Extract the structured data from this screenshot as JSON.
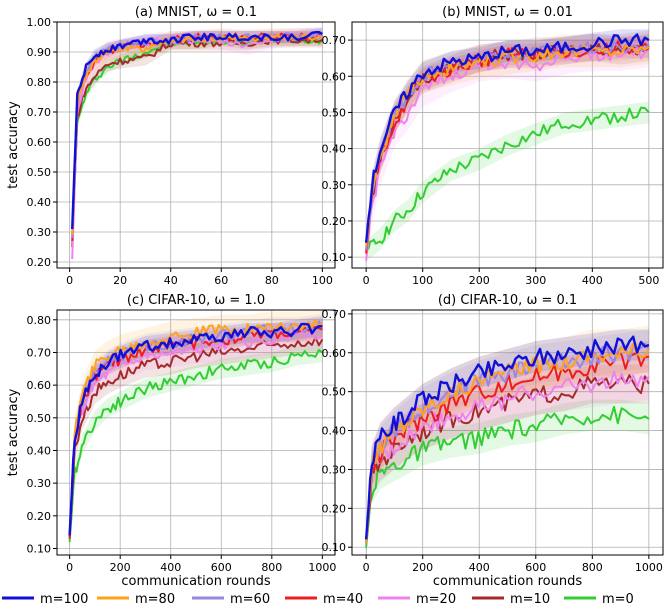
{
  "colors": {
    "m=100": "#1010d8",
    "m=80": "#ffa21a",
    "m=60": "#9b87e0",
    "m=40": "#ee1c1c",
    "m=20": "#ee82ee",
    "m=10": "#a52a2a",
    "m=0": "#32cd32"
  },
  "legend": {
    "entries": [
      "m=100",
      "m=80",
      "m=60",
      "m=40",
      "m=20",
      "m=10",
      "m=0"
    ]
  },
  "chart_data": [
    {
      "id": "a",
      "type": "line",
      "title": "(a) MNIST, ω = 0.1",
      "xlabel": "",
      "ylabel": "test accuracy",
      "xlim": [
        -5,
        105
      ],
      "ylim": [
        0.18,
        1.0
      ],
      "xticks": [
        0,
        20,
        40,
        60,
        80,
        100
      ],
      "yticks": [
        0.2,
        0.3,
        0.4,
        0.5,
        0.6,
        0.7,
        0.8,
        0.9,
        1.0
      ],
      "ytick_labels": [
        "0.20",
        "0.30",
        "0.40",
        "0.50",
        "0.60",
        "0.70",
        "0.80",
        "0.90",
        "1.00"
      ],
      "grid": true,
      "band": 0.02,
      "series": [
        {
          "name": "m=0",
          "x": [
            1,
            3,
            6,
            10,
            15,
            20,
            30,
            40,
            50,
            60,
            70,
            80,
            90,
            100
          ],
          "y": [
            0.29,
            0.66,
            0.75,
            0.81,
            0.85,
            0.87,
            0.9,
            0.93,
            0.93,
            0.94,
            0.93,
            0.94,
            0.94,
            0.94
          ]
        },
        {
          "name": "m=10",
          "x": [
            1,
            3,
            6,
            10,
            15,
            20,
            30,
            40,
            50,
            60,
            70,
            80,
            90,
            100
          ],
          "y": [
            0.25,
            0.68,
            0.77,
            0.82,
            0.86,
            0.87,
            0.88,
            0.93,
            0.93,
            0.93,
            0.93,
            0.94,
            0.94,
            0.94
          ]
        },
        {
          "name": "m=20",
          "x": [
            1,
            3,
            6,
            10,
            15,
            20,
            30,
            40,
            50,
            60,
            70,
            80,
            90,
            100
          ],
          "y": [
            0.21,
            0.7,
            0.8,
            0.86,
            0.9,
            0.91,
            0.93,
            0.94,
            0.94,
            0.94,
            0.92,
            0.94,
            0.95,
            0.95
          ]
        },
        {
          "name": "m=40",
          "x": [
            1,
            3,
            6,
            10,
            15,
            20,
            30,
            40,
            50,
            60,
            70,
            80,
            90,
            100
          ],
          "y": [
            0.27,
            0.72,
            0.82,
            0.87,
            0.9,
            0.92,
            0.93,
            0.94,
            0.95,
            0.95,
            0.95,
            0.95,
            0.95,
            0.95
          ]
        },
        {
          "name": "m=60",
          "x": [
            1,
            3,
            6,
            10,
            15,
            20,
            30,
            40,
            50,
            60,
            70,
            80,
            90,
            100
          ],
          "y": [
            0.28,
            0.73,
            0.83,
            0.88,
            0.91,
            0.92,
            0.93,
            0.94,
            0.95,
            0.95,
            0.95,
            0.95,
            0.95,
            0.96
          ]
        },
        {
          "name": "m=80",
          "x": [
            1,
            3,
            6,
            10,
            15,
            20,
            30,
            40,
            50,
            60,
            70,
            80,
            90,
            100
          ],
          "y": [
            0.29,
            0.73,
            0.82,
            0.87,
            0.9,
            0.91,
            0.91,
            0.94,
            0.94,
            0.95,
            0.94,
            0.95,
            0.95,
            0.95
          ]
        },
        {
          "name": "m=100",
          "x": [
            1,
            3,
            6,
            10,
            15,
            20,
            30,
            40,
            50,
            60,
            70,
            80,
            90,
            100
          ],
          "y": [
            0.31,
            0.75,
            0.84,
            0.89,
            0.91,
            0.92,
            0.94,
            0.94,
            0.95,
            0.95,
            0.95,
            0.95,
            0.95,
            0.96
          ]
        }
      ]
    },
    {
      "id": "b",
      "type": "line",
      "title": "(b) MNIST, ω = 0.01",
      "xlabel": "",
      "ylabel": "",
      "xlim": [
        -25,
        525
      ],
      "ylim": [
        0.07,
        0.75
      ],
      "xticks": [
        0,
        100,
        200,
        300,
        400,
        500
      ],
      "yticks": [
        0.1,
        0.2,
        0.3,
        0.4,
        0.5,
        0.6,
        0.7
      ],
      "ytick_labels": [
        "0.10",
        "0.20",
        "0.30",
        "0.40",
        "0.50",
        "0.60",
        "0.70"
      ],
      "grid": true,
      "band": 0.03,
      "series": [
        {
          "name": "m=0",
          "x": [
            0,
            10,
            25,
            50,
            75,
            100,
            150,
            200,
            250,
            300,
            350,
            400,
            450,
            500
          ],
          "y": [
            0.12,
            0.13,
            0.15,
            0.2,
            0.23,
            0.28,
            0.34,
            0.37,
            0.41,
            0.44,
            0.47,
            0.48,
            0.49,
            0.5
          ]
        },
        {
          "name": "m=10",
          "x": [
            0,
            10,
            25,
            50,
            75,
            100,
            150,
            200,
            250,
            300,
            350,
            400,
            450,
            500
          ],
          "y": [
            0.12,
            0.26,
            0.37,
            0.48,
            0.54,
            0.59,
            0.62,
            0.65,
            0.66,
            0.66,
            0.67,
            0.68,
            0.67,
            0.68
          ]
        },
        {
          "name": "m=20",
          "x": [
            0,
            10,
            25,
            50,
            75,
            100,
            150,
            200,
            250,
            300,
            350,
            400,
            450,
            500
          ],
          "y": [
            0.09,
            0.24,
            0.34,
            0.45,
            0.5,
            0.56,
            0.6,
            0.63,
            0.64,
            0.63,
            0.65,
            0.66,
            0.66,
            0.67
          ]
        },
        {
          "name": "m=40",
          "x": [
            0,
            10,
            25,
            50,
            75,
            100,
            150,
            200,
            250,
            300,
            350,
            400,
            450,
            500
          ],
          "y": [
            0.11,
            0.27,
            0.37,
            0.47,
            0.54,
            0.59,
            0.62,
            0.64,
            0.66,
            0.66,
            0.67,
            0.67,
            0.68,
            0.68
          ]
        },
        {
          "name": "m=60",
          "x": [
            0,
            10,
            25,
            50,
            75,
            100,
            150,
            200,
            250,
            300,
            350,
            400,
            450,
            500
          ],
          "y": [
            0.12,
            0.28,
            0.38,
            0.49,
            0.55,
            0.6,
            0.63,
            0.65,
            0.66,
            0.67,
            0.67,
            0.68,
            0.68,
            0.69
          ]
        },
        {
          "name": "m=80",
          "x": [
            0,
            10,
            25,
            50,
            75,
            100,
            150,
            200,
            250,
            300,
            350,
            400,
            450,
            500
          ],
          "y": [
            0.13,
            0.28,
            0.38,
            0.49,
            0.55,
            0.6,
            0.62,
            0.64,
            0.65,
            0.66,
            0.67,
            0.67,
            0.67,
            0.68
          ]
        },
        {
          "name": "m=100",
          "x": [
            0,
            10,
            25,
            50,
            75,
            100,
            150,
            200,
            250,
            300,
            350,
            400,
            450,
            500
          ],
          "y": [
            0.14,
            0.3,
            0.4,
            0.5,
            0.56,
            0.61,
            0.64,
            0.65,
            0.67,
            0.67,
            0.68,
            0.69,
            0.7,
            0.7
          ]
        }
      ]
    },
    {
      "id": "c",
      "type": "line",
      "title": "(c) CIFAR-10, ω = 1.0",
      "xlabel": "communication rounds",
      "ylabel": "test accuracy",
      "xlim": [
        -50,
        1050
      ],
      "ylim": [
        0.08,
        0.83
      ],
      "xticks": [
        0,
        200,
        400,
        600,
        800,
        1000
      ],
      "yticks": [
        0.1,
        0.2,
        0.3,
        0.4,
        0.5,
        0.6,
        0.7,
        0.8
      ],
      "ytick_labels": [
        "0.10",
        "0.20",
        "0.30",
        "0.40",
        "0.50",
        "0.60",
        "0.70",
        "0.80"
      ],
      "grid": true,
      "band": 0.03,
      "series": [
        {
          "name": "m=0",
          "x": [
            0,
            20,
            50,
            100,
            150,
            200,
            300,
            400,
            500,
            600,
            700,
            800,
            900,
            1000
          ],
          "y": [
            0.12,
            0.33,
            0.42,
            0.49,
            0.53,
            0.55,
            0.59,
            0.61,
            0.63,
            0.65,
            0.66,
            0.67,
            0.69,
            0.7
          ]
        },
        {
          "name": "m=10",
          "x": [
            0,
            20,
            50,
            100,
            150,
            200,
            300,
            400,
            500,
            600,
            700,
            800,
            900,
            1000
          ],
          "y": [
            0.13,
            0.4,
            0.5,
            0.58,
            0.61,
            0.63,
            0.66,
            0.67,
            0.69,
            0.7,
            0.71,
            0.72,
            0.73,
            0.74
          ]
        },
        {
          "name": "m=20",
          "x": [
            0,
            20,
            50,
            100,
            150,
            200,
            300,
            400,
            500,
            600,
            700,
            800,
            900,
            1000
          ],
          "y": [
            0.13,
            0.42,
            0.53,
            0.61,
            0.64,
            0.66,
            0.69,
            0.7,
            0.71,
            0.72,
            0.73,
            0.74,
            0.75,
            0.75
          ]
        },
        {
          "name": "m=40",
          "x": [
            0,
            20,
            50,
            100,
            150,
            200,
            300,
            400,
            500,
            600,
            700,
            800,
            900,
            1000
          ],
          "y": [
            0.13,
            0.44,
            0.55,
            0.63,
            0.66,
            0.68,
            0.71,
            0.72,
            0.73,
            0.74,
            0.75,
            0.76,
            0.76,
            0.77
          ]
        },
        {
          "name": "m=60",
          "x": [
            0,
            20,
            50,
            100,
            150,
            200,
            300,
            400,
            500,
            600,
            700,
            800,
            900,
            1000
          ],
          "y": [
            0.14,
            0.45,
            0.56,
            0.64,
            0.67,
            0.69,
            0.72,
            0.73,
            0.74,
            0.75,
            0.76,
            0.77,
            0.77,
            0.78
          ]
        },
        {
          "name": "m=80",
          "x": [
            0,
            20,
            50,
            100,
            150,
            200,
            300,
            400,
            500,
            600,
            700,
            800,
            900,
            1000
          ],
          "y": [
            0.14,
            0.46,
            0.57,
            0.66,
            0.69,
            0.71,
            0.73,
            0.75,
            0.76,
            0.77,
            0.77,
            0.78,
            0.78,
            0.79
          ]
        },
        {
          "name": "m=100",
          "x": [
            0,
            20,
            50,
            100,
            150,
            200,
            300,
            400,
            500,
            600,
            700,
            800,
            900,
            1000
          ],
          "y": [
            0.14,
            0.44,
            0.55,
            0.63,
            0.67,
            0.69,
            0.72,
            0.73,
            0.74,
            0.75,
            0.76,
            0.76,
            0.77,
            0.78
          ]
        }
      ]
    },
    {
      "id": "d",
      "type": "line",
      "title": "(d) CIFAR-10, ω = 0.1",
      "xlabel": "communication rounds",
      "ylabel": "",
      "xlim": [
        -50,
        1050
      ],
      "ylim": [
        0.08,
        0.71
      ],
      "xticks": [
        0,
        200,
        400,
        600,
        800,
        1000
      ],
      "yticks": [
        0.1,
        0.2,
        0.3,
        0.4,
        0.5,
        0.6,
        0.7
      ],
      "ytick_labels": [
        "0.10",
        "0.20",
        "0.30",
        "0.40",
        "0.50",
        "0.60",
        "0.70"
      ],
      "grid": true,
      "band": 0.04,
      "series": [
        {
          "name": "m=0",
          "x": [
            0,
            20,
            50,
            100,
            150,
            200,
            300,
            400,
            500,
            600,
            700,
            800,
            900,
            1000
          ],
          "y": [
            0.1,
            0.25,
            0.29,
            0.31,
            0.33,
            0.35,
            0.37,
            0.38,
            0.4,
            0.41,
            0.43,
            0.44,
            0.44,
            0.43
          ]
        },
        {
          "name": "m=10",
          "x": [
            0,
            20,
            50,
            100,
            150,
            200,
            300,
            400,
            500,
            600,
            700,
            800,
            900,
            1000
          ],
          "y": [
            0.11,
            0.28,
            0.32,
            0.35,
            0.38,
            0.4,
            0.43,
            0.45,
            0.47,
            0.49,
            0.5,
            0.52,
            0.52,
            0.52
          ]
        },
        {
          "name": "m=20",
          "x": [
            0,
            20,
            50,
            100,
            150,
            200,
            300,
            400,
            500,
            600,
            700,
            800,
            900,
            1000
          ],
          "y": [
            0.11,
            0.29,
            0.33,
            0.36,
            0.39,
            0.41,
            0.44,
            0.46,
            0.48,
            0.5,
            0.51,
            0.52,
            0.53,
            0.54
          ]
        },
        {
          "name": "m=40",
          "x": [
            0,
            20,
            50,
            100,
            150,
            200,
            300,
            400,
            500,
            600,
            700,
            800,
            900,
            1000
          ],
          "y": [
            0.11,
            0.3,
            0.34,
            0.38,
            0.41,
            0.43,
            0.47,
            0.5,
            0.52,
            0.54,
            0.55,
            0.57,
            0.58,
            0.59
          ]
        },
        {
          "name": "m=60",
          "x": [
            0,
            20,
            50,
            100,
            150,
            200,
            300,
            400,
            500,
            600,
            700,
            800,
            900,
            1000
          ],
          "y": [
            0.11,
            0.31,
            0.36,
            0.4,
            0.43,
            0.46,
            0.5,
            0.53,
            0.55,
            0.57,
            0.58,
            0.59,
            0.6,
            0.61
          ]
        },
        {
          "name": "m=80",
          "x": [
            0,
            20,
            50,
            100,
            150,
            200,
            300,
            400,
            500,
            600,
            700,
            800,
            900,
            1000
          ],
          "y": [
            0.11,
            0.31,
            0.36,
            0.4,
            0.43,
            0.46,
            0.5,
            0.53,
            0.55,
            0.57,
            0.58,
            0.6,
            0.6,
            0.61
          ]
        },
        {
          "name": "m=100",
          "x": [
            0,
            20,
            50,
            100,
            150,
            200,
            300,
            400,
            500,
            600,
            700,
            800,
            900,
            1000
          ],
          "y": [
            0.12,
            0.32,
            0.38,
            0.42,
            0.45,
            0.48,
            0.52,
            0.55,
            0.57,
            0.59,
            0.6,
            0.61,
            0.62,
            0.62
          ]
        }
      ]
    }
  ]
}
